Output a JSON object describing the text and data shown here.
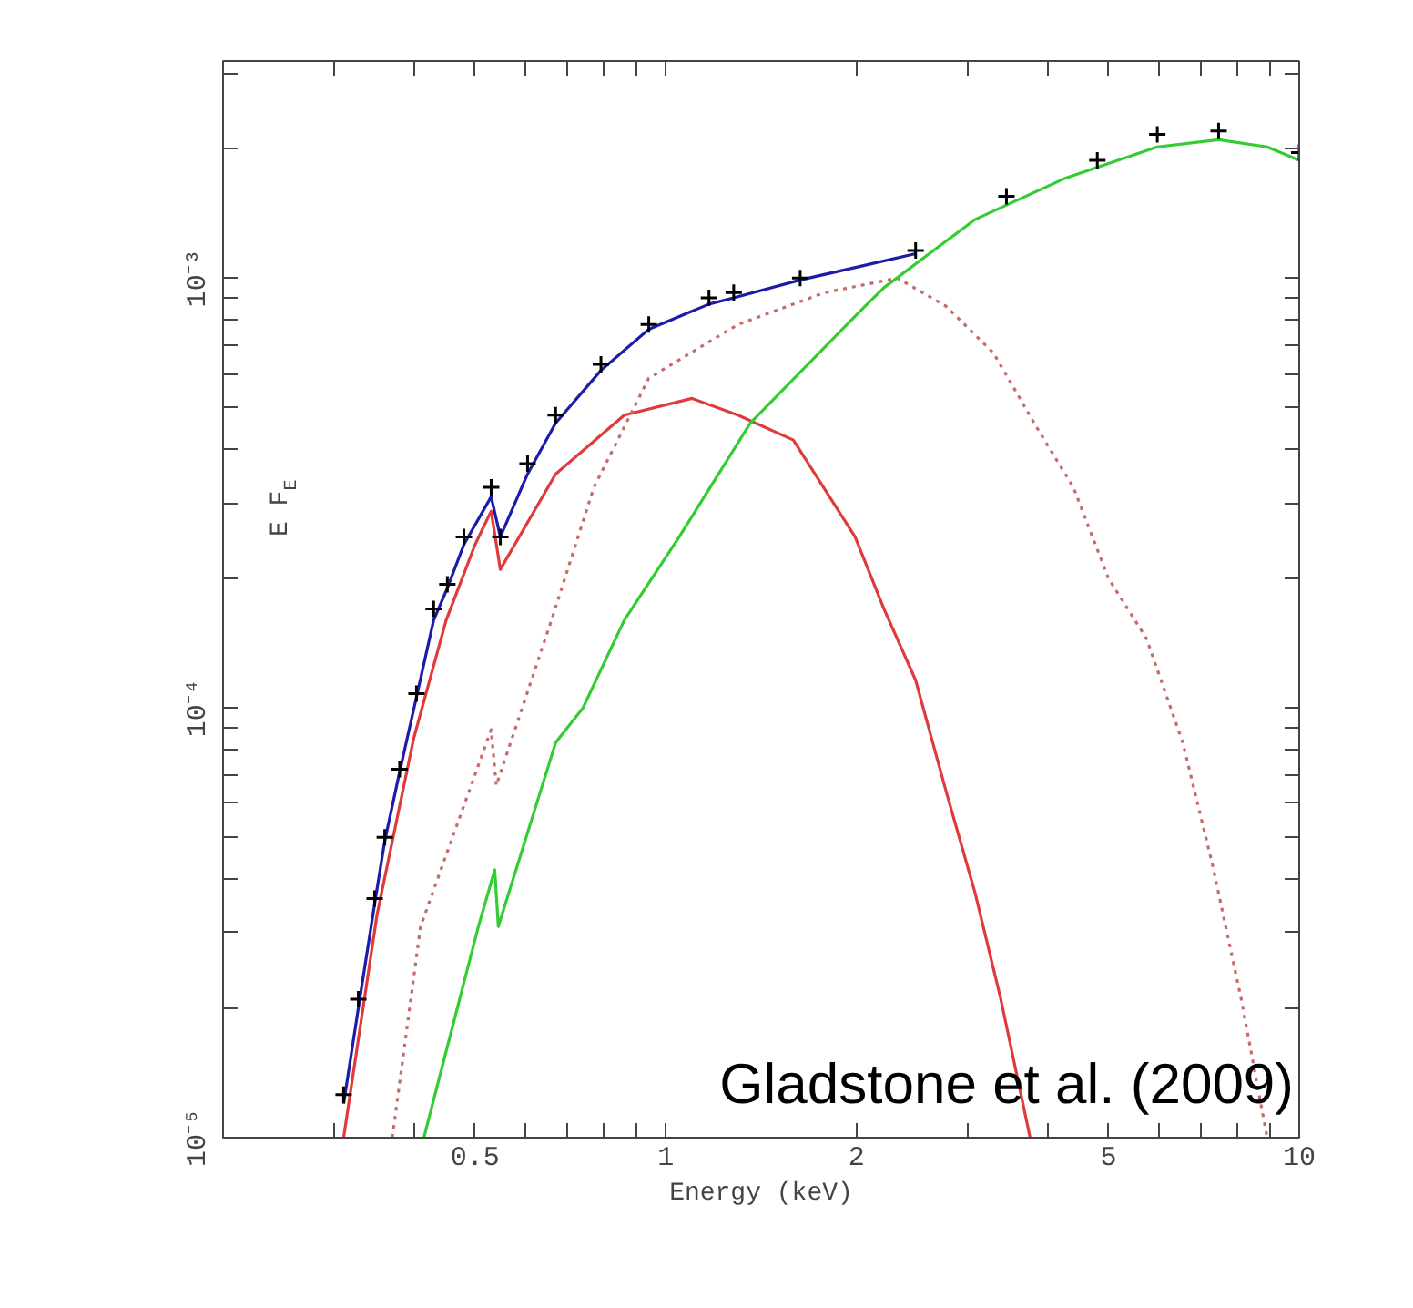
{
  "chart_data": {
    "type": "line",
    "xlabel": "Energy (keV)",
    "ylabel": "E F$_{E}$",
    "log": "xy",
    "grid": false,
    "xlim": [
      0.2,
      10
    ],
    "ylim": [
      1e-05,
      0.0032
    ],
    "xticks": [
      {
        "value": 0.3,
        "label": null
      },
      {
        "value": 0.4,
        "label": null
      },
      0.5,
      {
        "value": 0.6,
        "label": null
      },
      {
        "value": 0.7,
        "label": null
      },
      {
        "value": 0.8,
        "label": null
      },
      {
        "value": 0.9,
        "label": null
      },
      1,
      2,
      {
        "value": 3,
        "label": null
      },
      {
        "value": 4,
        "label": null
      },
      5,
      {
        "value": 6,
        "label": null
      },
      {
        "value": 7,
        "label": null
      },
      {
        "value": 8,
        "label": null
      },
      {
        "value": 9,
        "label": null
      },
      10
    ],
    "yticks": [
      {
        "value": 1e-05,
        "label": "10⁻⁵"
      },
      {
        "value": 2e-05,
        "label": null
      },
      {
        "value": 3e-05,
        "label": null
      },
      {
        "value": 4e-05,
        "label": null
      },
      {
        "value": 5e-05,
        "label": null
      },
      {
        "value": 6e-05,
        "label": null
      },
      {
        "value": 7e-05,
        "label": null
      },
      {
        "value": 8e-05,
        "label": null
      },
      {
        "value": 9e-05,
        "label": null
      },
      {
        "value": 0.0001,
        "label": "10⁻⁴"
      },
      {
        "value": 0.0002,
        "label": null
      },
      {
        "value": 0.0003,
        "label": null
      },
      {
        "value": 0.0004,
        "label": null
      },
      {
        "value": 0.0005,
        "label": null
      },
      {
        "value": 0.0006,
        "label": null
      },
      {
        "value": 0.0007,
        "label": null
      },
      {
        "value": 0.0008,
        "label": null
      },
      {
        "value": 0.0009,
        "label": null
      },
      {
        "value": 0.001,
        "label": "10⁻³"
      },
      {
        "value": 0.002,
        "label": null
      },
      {
        "value": 0.003,
        "label": null
      }
    ],
    "annotations": [
      "Gladstone et al. (2009)"
    ],
    "series": [
      {
        "color": "#1c1ca8",
        "line_style": "solid",
        "x": [
          0.31,
          0.327,
          0.347,
          0.36,
          0.38,
          0.404,
          0.43,
          0.452,
          0.48,
          0.53,
          0.548,
          0.605,
          0.67,
          0.79,
          0.94,
          1.17,
          1.28,
          1.63,
          2.0,
          2.48
        ],
        "values": [
          1.2e-05,
          2e-05,
          3.5e-05,
          4.9e-05,
          7.1e-05,
          0.000106,
          0.00016,
          0.00019,
          0.00024,
          0.00031,
          0.00025,
          0.00035,
          0.00046,
          0.00061,
          0.00076,
          0.00087,
          0.0009,
          0.00099,
          0.00106,
          0.00114
        ]
      },
      {
        "color": "#e03a3a",
        "line_style": "solid",
        "x": [
          0.31,
          0.35,
          0.4,
          0.45,
          0.5,
          0.53,
          0.548,
          0.67,
          0.86,
          1.1,
          1.3,
          1.59,
          1.99,
          2.21,
          2.48,
          2.77,
          3.08,
          3.38,
          3.76
        ],
        "values": [
          1e-05,
          3.3e-05,
          8.5e-05,
          0.00016,
          0.00024,
          0.000287,
          0.00021,
          0.00035,
          0.00048,
          0.000525,
          0.00048,
          0.00042,
          0.00025,
          0.00017,
          0.000116,
          6.4e-05,
          3.7e-05,
          2.1e-05,
          1e-05
        ]
      },
      {
        "color": "#c86a6a",
        "line_style": "dotted",
        "x": [
          0.37,
          0.41,
          0.53,
          0.54,
          0.66,
          0.77,
          0.94,
          1.3,
          1.78,
          2.32,
          2.77,
          3.29,
          3.85,
          4.4,
          5.0,
          5.74,
          6.55,
          7.3,
          8.1,
          8.9
        ],
        "values": [
          1e-05,
          3.1e-05,
          8.9e-05,
          6.6e-05,
          0.00016,
          0.000326,
          0.000585,
          0.00078,
          0.000925,
          0.001,
          0.00086,
          0.00067,
          0.00045,
          0.000326,
          0.0002,
          0.000145,
          8.3e-05,
          4.3e-05,
          2.1e-05,
          1e-05
        ]
      },
      {
        "color": "#33cc33",
        "line_style": "solid",
        "x": [
          0.415,
          0.506,
          0.537,
          0.544,
          0.67,
          0.74,
          0.86,
          1.05,
          1.36,
          2.03,
          2.21,
          3.08,
          4.28,
          5.97,
          7.46,
          8.9,
          10
        ],
        "values": [
          1e-05,
          3.1e-05,
          4.2e-05,
          3.1e-05,
          8.3e-05,
          0.0001,
          0.00016,
          0.00025,
          0.00046,
          0.00084,
          0.00095,
          0.00137,
          0.00171,
          0.00202,
          0.0021,
          0.00202,
          0.00188
        ]
      },
      {
        "type": "scatter",
        "color": "#000000",
        "marker": "cross",
        "x": [
          0.31,
          0.327,
          0.347,
          0.36,
          0.38,
          0.404,
          0.43,
          0.452,
          0.48,
          0.53,
          0.548,
          0.605,
          0.67,
          0.79,
          0.94,
          1.17,
          1.28,
          1.63,
          2.48,
          3.45,
          4.8,
          5.97,
          7.46,
          10.0
        ],
        "values": [
          1.26e-05,
          2.1e-05,
          3.6e-05,
          5e-05,
          7.2e-05,
          0.000108,
          0.00017,
          0.000194,
          0.00025,
          0.000326,
          0.00025,
          0.00037,
          0.00048,
          0.00063,
          0.00078,
          0.0009,
          0.000925,
          0.001,
          0.00116,
          0.00155,
          0.00188,
          0.00216,
          0.0022,
          0.00196
        ]
      }
    ]
  }
}
